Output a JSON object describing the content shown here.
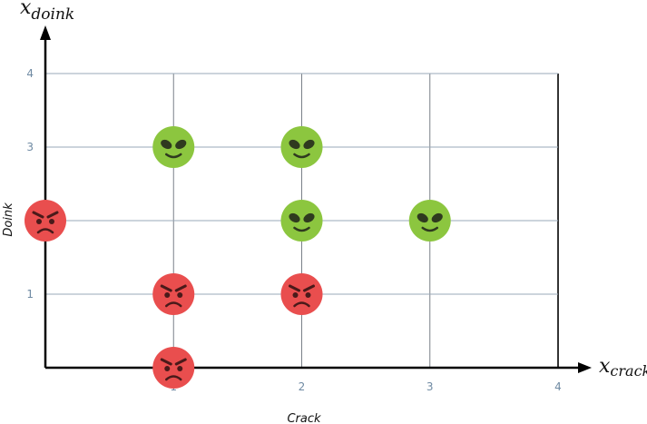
{
  "chart_data": {
    "type": "scatter",
    "x_axis_symbol": "x",
    "x_axis_subscript": "crack",
    "y_axis_symbol": "x",
    "y_axis_subscript": "doink",
    "xlabel": "Crack",
    "ylabel": "Doink",
    "xlim": [
      0,
      4
    ],
    "ylim": [
      0,
      4
    ],
    "x_ticks": [
      "1",
      "2",
      "3",
      "4"
    ],
    "y_ticks": [
      "1",
      "3",
      "4"
    ],
    "grid": true,
    "series": [
      {
        "marker": "green-alien-face",
        "color": "#8cc63f",
        "points": [
          [
            1,
            3
          ],
          [
            2,
            3
          ],
          [
            2,
            2
          ],
          [
            3,
            2
          ]
        ]
      },
      {
        "marker": "red-angry-face",
        "color": "#e94e4e",
        "points": [
          [
            0,
            2
          ],
          [
            1,
            1
          ],
          [
            2,
            1
          ],
          [
            1,
            0
          ]
        ]
      }
    ]
  }
}
